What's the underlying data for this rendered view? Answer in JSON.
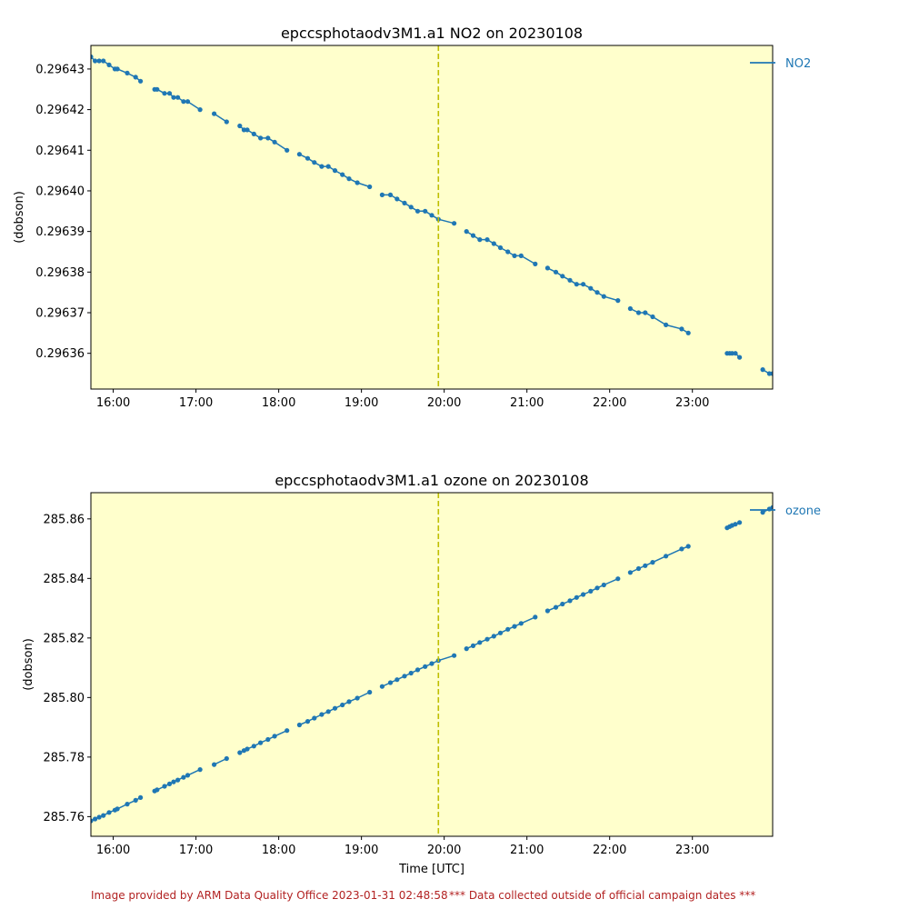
{
  "colors": {
    "plot_background": "#ffffcc",
    "series": "#1f77b4",
    "marker_line": "#bfbf00",
    "footer_text": "#b22222"
  },
  "footer": {
    "provided": "Image provided by ARM Data Quality Office 2023-01-31 02:48:58",
    "warning": "*** Data collected outside of official campaign dates ***"
  },
  "chart_data": [
    {
      "type": "line",
      "title": "epccsphotaodv3M1.a1 NO2 on 20230108",
      "ylabel": "(dobson)",
      "xlabel": "",
      "x_unit": "hours UTC",
      "xlim": [
        15.73,
        23.97
      ],
      "ylim": [
        0.2963512,
        0.2964358
      ],
      "xticks": [
        16,
        17,
        18,
        19,
        20,
        21,
        22,
        23
      ],
      "xtick_labels": [
        "16:00",
        "17:00",
        "18:00",
        "19:00",
        "20:00",
        "21:00",
        "22:00",
        "23:00"
      ],
      "yticks": [
        0.29636,
        0.29637,
        0.29638,
        0.29639,
        0.2964,
        0.29641,
        0.29642,
        0.29643
      ],
      "ytick_labels": [
        "0.29636",
        "0.29637",
        "0.29638",
        "0.29639",
        "0.29640",
        "0.29641",
        "0.29642",
        "0.29643"
      ],
      "vertical_marker_x": 19.93,
      "legend_position": "top-right",
      "series": [
        {
          "name": "NO2",
          "segments": [
            [
              [
                15.73,
                0.296433
              ],
              [
                15.78,
                0.296432
              ],
              [
                15.83,
                0.296432
              ],
              [
                15.88,
                0.296432
              ],
              [
                15.95,
                0.296431
              ],
              [
                16.02,
                0.29643
              ],
              [
                16.05,
                0.29643
              ],
              [
                16.17,
                0.296429
              ],
              [
                16.27,
                0.296428
              ],
              [
                16.33,
                0.296427
              ]
            ],
            [
              [
                16.5,
                0.296425
              ],
              [
                16.53,
                0.296425
              ],
              [
                16.62,
                0.296424
              ],
              [
                16.68,
                0.296424
              ],
              [
                16.73,
                0.296423
              ],
              [
                16.78,
                0.296423
              ],
              [
                16.85,
                0.296422
              ],
              [
                16.9,
                0.296422
              ],
              [
                17.05,
                0.29642
              ]
            ],
            [
              [
                17.22,
                0.296419
              ],
              [
                17.37,
                0.296417
              ]
            ],
            [
              [
                17.53,
                0.296416
              ],
              [
                17.58,
                0.296415
              ],
              [
                17.62,
                0.296415
              ],
              [
                17.7,
                0.296414
              ],
              [
                17.78,
                0.296413
              ],
              [
                17.87,
                0.296413
              ],
              [
                17.95,
                0.296412
              ],
              [
                18.1,
                0.29641
              ]
            ],
            [
              [
                18.25,
                0.296409
              ],
              [
                18.35,
                0.296408
              ],
              [
                18.43,
                0.296407
              ],
              [
                18.52,
                0.296406
              ],
              [
                18.6,
                0.296406
              ],
              [
                18.68,
                0.296405
              ],
              [
                18.77,
                0.296404
              ],
              [
                18.85,
                0.296403
              ],
              [
                18.95,
                0.296402
              ],
              [
                19.1,
                0.296401
              ]
            ],
            [
              [
                19.25,
                0.296399
              ],
              [
                19.35,
                0.296399
              ],
              [
                19.43,
                0.296398
              ],
              [
                19.52,
                0.296397
              ],
              [
                19.6,
                0.296396
              ],
              [
                19.68,
                0.296395
              ],
              [
                19.77,
                0.296395
              ],
              [
                19.85,
                0.296394
              ],
              [
                19.93,
                0.296393
              ],
              [
                20.12,
                0.296392
              ]
            ],
            [
              [
                20.27,
                0.29639
              ],
              [
                20.35,
                0.296389
              ],
              [
                20.43,
                0.296388
              ],
              [
                20.52,
                0.296388
              ],
              [
                20.6,
                0.296387
              ],
              [
                20.68,
                0.296386
              ],
              [
                20.77,
                0.296385
              ],
              [
                20.85,
                0.296384
              ],
              [
                20.93,
                0.296384
              ],
              [
                21.1,
                0.296382
              ]
            ],
            [
              [
                21.25,
                0.296381
              ],
              [
                21.35,
                0.29638
              ],
              [
                21.43,
                0.296379
              ],
              [
                21.52,
                0.296378
              ],
              [
                21.6,
                0.296377
              ],
              [
                21.68,
                0.296377
              ],
              [
                21.77,
                0.296376
              ],
              [
                21.85,
                0.296375
              ],
              [
                21.93,
                0.296374
              ],
              [
                22.1,
                0.296373
              ]
            ],
            [
              [
                22.25,
                0.296371
              ],
              [
                22.35,
                0.29637
              ],
              [
                22.43,
                0.29637
              ],
              [
                22.52,
                0.296369
              ],
              [
                22.68,
                0.296367
              ],
              [
                22.87,
                0.296366
              ],
              [
                22.95,
                0.296365
              ]
            ],
            [
              [
                23.42,
                0.29636
              ],
              [
                23.45,
                0.29636
              ],
              [
                23.48,
                0.29636
              ],
              [
                23.52,
                0.29636
              ],
              [
                23.57,
                0.296359
              ]
            ],
            [
              [
                23.85,
                0.296356
              ],
              [
                23.93,
                0.296355
              ],
              [
                23.97,
                0.296355
              ]
            ]
          ]
        }
      ]
    },
    {
      "type": "line",
      "title": "epccsphotaodv3M1.a1 ozone on 20230108",
      "ylabel": "(dobson)",
      "xlabel": "Time [UTC]",
      "x_unit": "hours UTC",
      "xlim": [
        15.73,
        23.97
      ],
      "ylim": [
        285.7534,
        285.8688
      ],
      "xticks": [
        16,
        17,
        18,
        19,
        20,
        21,
        22,
        23
      ],
      "xtick_labels": [
        "16:00",
        "17:00",
        "18:00",
        "19:00",
        "20:00",
        "21:00",
        "22:00",
        "23:00"
      ],
      "yticks": [
        285.76,
        285.78,
        285.8,
        285.82,
        285.84,
        285.86
      ],
      "ytick_labels": [
        "285.76",
        "285.78",
        "285.80",
        "285.82",
        "285.84",
        "285.86"
      ],
      "vertical_marker_x": 19.93,
      "legend_position": "top-right",
      "series": [
        {
          "name": "ozone",
          "segments": [
            [
              [
                15.73,
                285.7586
              ],
              [
                15.78,
                285.7592
              ],
              [
                15.83,
                285.7598
              ],
              [
                15.88,
                285.7604
              ],
              [
                15.95,
                285.7614
              ],
              [
                16.02,
                285.7622
              ],
              [
                16.05,
                285.7626
              ],
              [
                16.17,
                285.7642
              ],
              [
                16.27,
                285.7655
              ],
              [
                16.33,
                285.7664
              ]
            ],
            [
              [
                16.5,
                285.7686
              ],
              [
                16.53,
                285.769
              ],
              [
                16.62,
                285.7702
              ],
              [
                16.68,
                285.771
              ],
              [
                16.73,
                285.7717
              ],
              [
                16.78,
                285.7723
              ],
              [
                16.85,
                285.7732
              ],
              [
                16.9,
                285.7739
              ],
              [
                17.05,
                285.7758
              ]
            ],
            [
              [
                17.22,
                285.7775
              ],
              [
                17.37,
                285.7795
              ]
            ],
            [
              [
                17.53,
                285.7815
              ],
              [
                17.58,
                285.7822
              ],
              [
                17.62,
                285.7827
              ],
              [
                17.7,
                285.7837
              ],
              [
                17.78,
                285.7848
              ],
              [
                17.87,
                285.7859
              ],
              [
                17.95,
                285.787
              ],
              [
                18.1,
                285.7889
              ]
            ],
            [
              [
                18.25,
                285.7908
              ],
              [
                18.35,
                285.792
              ],
              [
                18.43,
                285.7931
              ],
              [
                18.52,
                285.7943
              ],
              [
                18.6,
                285.7953
              ],
              [
                18.68,
                285.7964
              ],
              [
                18.77,
                285.7975
              ],
              [
                18.85,
                285.7986
              ],
              [
                18.95,
                285.7998
              ],
              [
                19.1,
                285.8018
              ]
            ],
            [
              [
                19.25,
                285.8037
              ],
              [
                19.35,
                285.805
              ],
              [
                19.43,
                285.806
              ],
              [
                19.52,
                285.8072
              ],
              [
                19.6,
                285.8082
              ],
              [
                19.68,
                285.8093
              ],
              [
                19.77,
                285.8104
              ],
              [
                19.85,
                285.8114
              ],
              [
                19.93,
                285.8124
              ],
              [
                20.12,
                285.8141
              ]
            ],
            [
              [
                20.27,
                285.8164
              ],
              [
                20.35,
                285.8174
              ],
              [
                20.43,
                285.8185
              ],
              [
                20.52,
                285.8196
              ],
              [
                20.6,
                285.8206
              ],
              [
                20.68,
                285.8217
              ],
              [
                20.77,
                285.8229
              ],
              [
                20.85,
                285.8239
              ],
              [
                20.93,
                285.8249
              ],
              [
                21.1,
                285.827
              ]
            ],
            [
              [
                21.25,
                285.8291
              ],
              [
                21.35,
                285.8303
              ],
              [
                21.43,
                285.8314
              ],
              [
                21.52,
                285.8325
              ],
              [
                21.6,
                285.8336
              ],
              [
                21.68,
                285.8346
              ],
              [
                21.77,
                285.8357
              ],
              [
                21.85,
                285.8368
              ],
              [
                21.93,
                285.8378
              ],
              [
                22.1,
                285.8399
              ]
            ],
            [
              [
                22.25,
                285.842
              ],
              [
                22.35,
                285.8433
              ],
              [
                22.43,
                285.8443
              ],
              [
                22.52,
                285.8454
              ],
              [
                22.68,
                285.8475
              ],
              [
                22.87,
                285.8499
              ],
              [
                22.95,
                285.8508
              ]
            ],
            [
              [
                23.42,
                285.857
              ],
              [
                23.45,
                285.8574
              ],
              [
                23.48,
                285.8578
              ],
              [
                23.52,
                285.8582
              ],
              [
                23.57,
                285.8588
              ]
            ],
            [
              [
                23.85,
                285.8622
              ],
              [
                23.93,
                285.8633
              ],
              [
                23.97,
                285.8638
              ]
            ]
          ]
        }
      ]
    }
  ]
}
